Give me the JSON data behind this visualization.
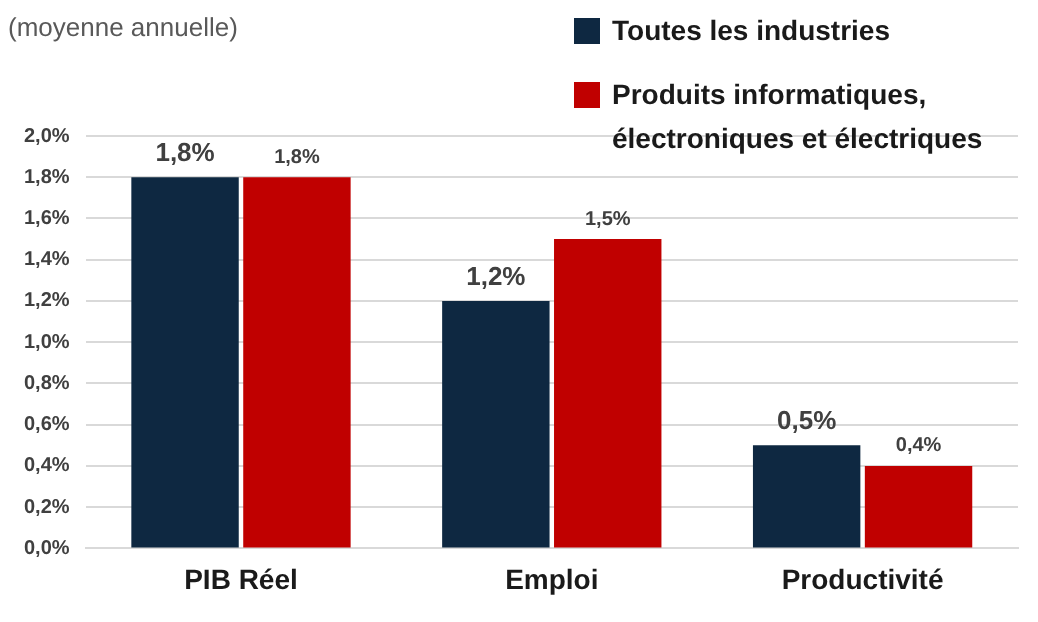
{
  "chart_data": {
    "type": "bar",
    "subtitle": "(moyenne annuelle)",
    "categories": [
      "PIB Réel",
      "Emploi",
      "Productivité"
    ],
    "series": [
      {
        "name": "Toutes les industries",
        "color": "#0e2841",
        "values": [
          1.8,
          1.2,
          0.5
        ],
        "value_labels": [
          "1,8%",
          "1,2%",
          "0,5%"
        ]
      },
      {
        "name": "Produits informatiques, électroniques et électriques",
        "color": "#c00000",
        "values": [
          1.8,
          1.5,
          0.4
        ],
        "value_labels": [
          "1,8%",
          "1,5%",
          "0,4%"
        ]
      }
    ],
    "ylim": [
      0,
      2
    ],
    "yticks": [
      {
        "value": 0,
        "label": "0,0%"
      },
      {
        "value": 0.2,
        "label": "0,2%"
      },
      {
        "value": 0.4,
        "label": "0,4%"
      },
      {
        "value": 0.6,
        "label": "0,6%"
      },
      {
        "value": 0.8,
        "label": "0,8%"
      },
      {
        "value": 1,
        "label": "1,0%"
      },
      {
        "value": 1.2,
        "label": "1,2%"
      },
      {
        "value": 1.4,
        "label": "1,4%"
      },
      {
        "value": 1.6,
        "label": "1,6%"
      },
      {
        "value": 1.8,
        "label": "1,8%"
      },
      {
        "value": 2,
        "label": "2,0%"
      }
    ],
    "grid": "y",
    "legend": "top right"
  }
}
